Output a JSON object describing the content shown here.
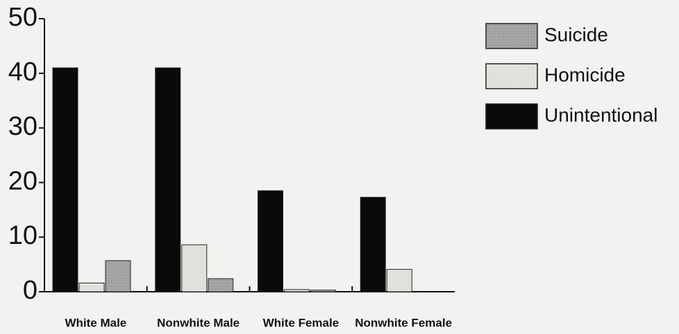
{
  "chart_data": {
    "type": "bar",
    "categories": [
      "White Male",
      "Nonwhite Male",
      "White Female",
      "Nonwhite Female"
    ],
    "series": [
      {
        "name": "Suicide",
        "color": "#a8a8a8",
        "values": [
          5.7,
          2.4,
          0.3,
          0
        ]
      },
      {
        "name": "Homicide",
        "color": "#e4e4e0",
        "values": [
          1.6,
          8.6,
          0.4,
          4.1
        ]
      },
      {
        "name": "Unintentional",
        "color": "#0a0a0a",
        "values": [
          41,
          41,
          18.5,
          17.3
        ]
      }
    ],
    "ylim": [
      0,
      50
    ],
    "yticks": [
      0,
      10,
      20,
      30,
      40,
      50
    ],
    "legend": "upper right"
  }
}
